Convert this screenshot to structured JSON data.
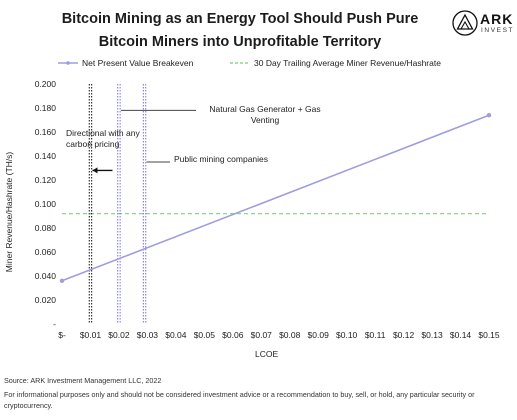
{
  "chart_data": {
    "type": "line",
    "title": "Bitcoin Mining as an Energy Tool Should Push Pure Bitcoin Miners into Unprofitable Territory",
    "xlabel": "LCOE",
    "ylabel": "Miner Revenue/Hashrate (TH/s)",
    "xlim": [
      0,
      0.15
    ],
    "ylim": [
      0,
      0.2
    ],
    "x_ticks": [
      0,
      0.01,
      0.02,
      0.03,
      0.04,
      0.05,
      0.06,
      0.07,
      0.08,
      0.09,
      0.1,
      0.11,
      0.12,
      0.13,
      0.14,
      0.15
    ],
    "x_tick_labels": [
      "$-",
      "$0.01",
      "$0.02",
      "$0.03",
      "$0.04",
      "$0.05",
      "$0.06",
      "$0.07",
      "$0.08",
      "$0.09",
      "$0.10",
      "$0.11",
      "$0.12",
      "$0.13",
      "$0.14",
      "$0.15"
    ],
    "y_ticks": [
      0,
      0.02,
      0.04,
      0.06,
      0.08,
      0.1,
      0.12,
      0.14,
      0.16,
      0.18,
      0.2
    ],
    "y_tick_labels": [
      "-",
      "0.020",
      "0.040",
      "0.060",
      "0.080",
      "0.100",
      "0.120",
      "0.140",
      "0.160",
      "0.180",
      "0.200"
    ],
    "series": [
      {
        "name": "Net Present Value Breakeven",
        "x": [
          0,
          0.15
        ],
        "y": [
          0.036,
          0.174
        ],
        "color": "#9d9de0"
      },
      {
        "name": "30 Day Trailing Average Miner Revenue/Hashrate",
        "y_const": 0.092,
        "color": "#8fd68f"
      }
    ],
    "vertical_lines": [
      {
        "x": 0.01,
        "color": "#111111"
      },
      {
        "x": 0.02,
        "color": "#7b6ef0"
      },
      {
        "x": 0.029,
        "color": "#7b6ef0"
      }
    ],
    "annotations": [
      {
        "text": "Directional with any carbon pricing"
      },
      {
        "text": "Natural Gas Generator + Gas Venting"
      },
      {
        "text": "Public mining companies"
      }
    ],
    "grid": false,
    "legend": "top"
  },
  "logo": {
    "name": "ARK",
    "sub": "INVEST",
    "icon": "ark-triangle-icon"
  },
  "source": "Source: ARK Investment Management LLC, 2022",
  "disclaimer": "For informational purposes only and should not be considered investment advice or a recommendation to buy, sell, or hold, any particular security or cryptocurrency."
}
